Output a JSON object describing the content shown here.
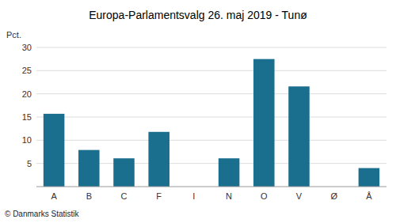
{
  "chart_data": {
    "type": "bar",
    "title": "Europa-Parlamentsvalg 26. maj 2019 - Tunø",
    "ylabel": "Pct.",
    "footnote": "© Danmarks Statistik",
    "categories": [
      "A",
      "B",
      "C",
      "F",
      "I",
      "N",
      "O",
      "V",
      "Ø",
      "Å"
    ],
    "values": [
      15.7,
      7.9,
      6.1,
      11.8,
      0.0,
      6.1,
      27.5,
      21.6,
      0.0,
      4.0
    ],
    "color": "#1a6e8e",
    "ylim": [
      0,
      30
    ],
    "yticks": [
      5,
      10,
      15,
      20,
      25,
      30
    ],
    "grid": true
  }
}
